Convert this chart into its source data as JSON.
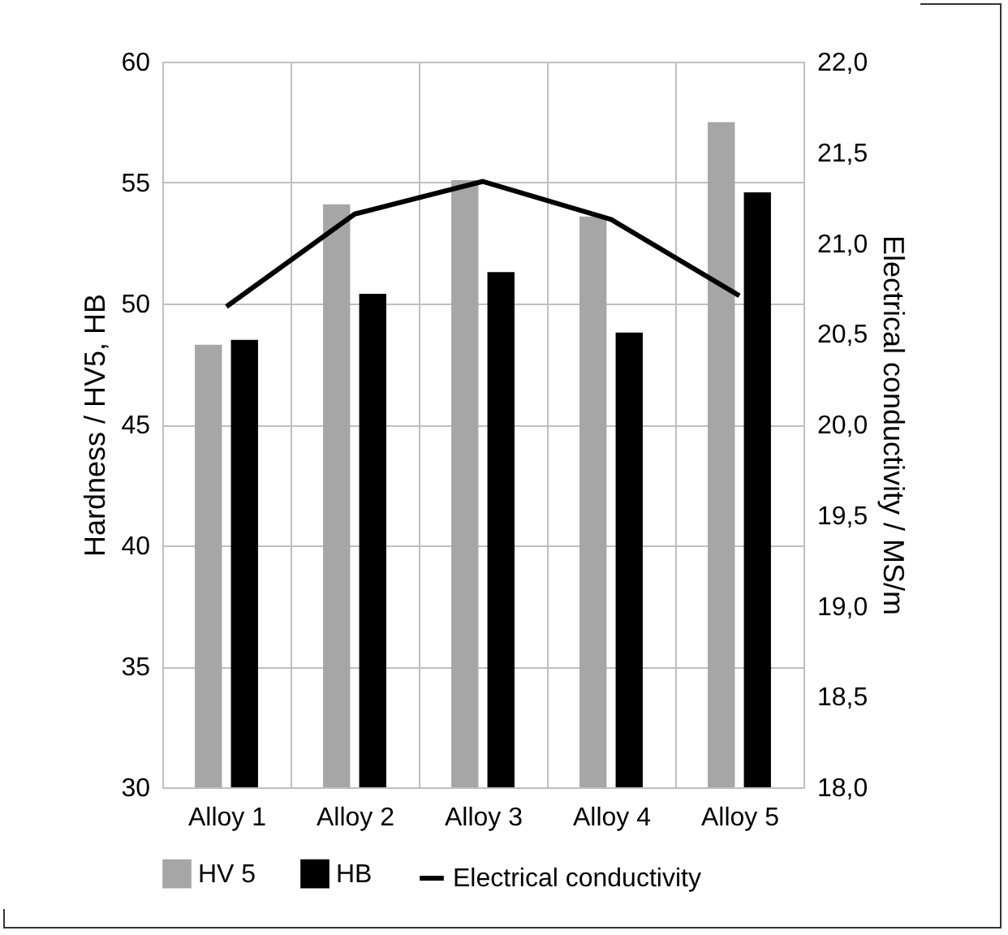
{
  "chart_data": {
    "type": "bar",
    "categories": [
      "Alloy 1",
      "Alloy 2",
      "Alloy 3",
      "Alloy 4",
      "Alloy 5"
    ],
    "ylabel": "Hardness / HV5, HB",
    "y2label": "Electrical conductivity / MS/m",
    "ylim": [
      30,
      60
    ],
    "yticks": [
      30,
      35,
      40,
      45,
      50,
      55,
      60
    ],
    "y2lim": [
      18,
      22
    ],
    "y2ticks": [
      {
        "value": 18,
        "label": "18,0"
      },
      {
        "value": 18.5,
        "label": "18,5"
      },
      {
        "value": 19,
        "label": "19,0"
      },
      {
        "value": 19.5,
        "label": "19,5"
      },
      {
        "value": 20,
        "label": "20,0"
      },
      {
        "value": 20.5,
        "label": "20,5"
      },
      {
        "value": 21,
        "label": "21,0"
      },
      {
        "value": 21.5,
        "label": "21,5"
      },
      {
        "value": 22,
        "label": "22,0"
      }
    ],
    "series": [
      {
        "name": "HV 5",
        "color": "#a6a6a6",
        "values": [
          48.3,
          54.1,
          55.1,
          53.6,
          57.5
        ]
      },
      {
        "name": "HB",
        "color": "#000000",
        "values": [
          48.5,
          50.4,
          51.3,
          48.8,
          54.6
        ]
      },
      {
        "name": "Electrical conductivity",
        "type": "line",
        "axis": "y2",
        "color": "#000000",
        "values": [
          20.65,
          21.16,
          21.34,
          21.13,
          20.71
        ]
      }
    ],
    "grid": true,
    "legend": "bottom"
  }
}
